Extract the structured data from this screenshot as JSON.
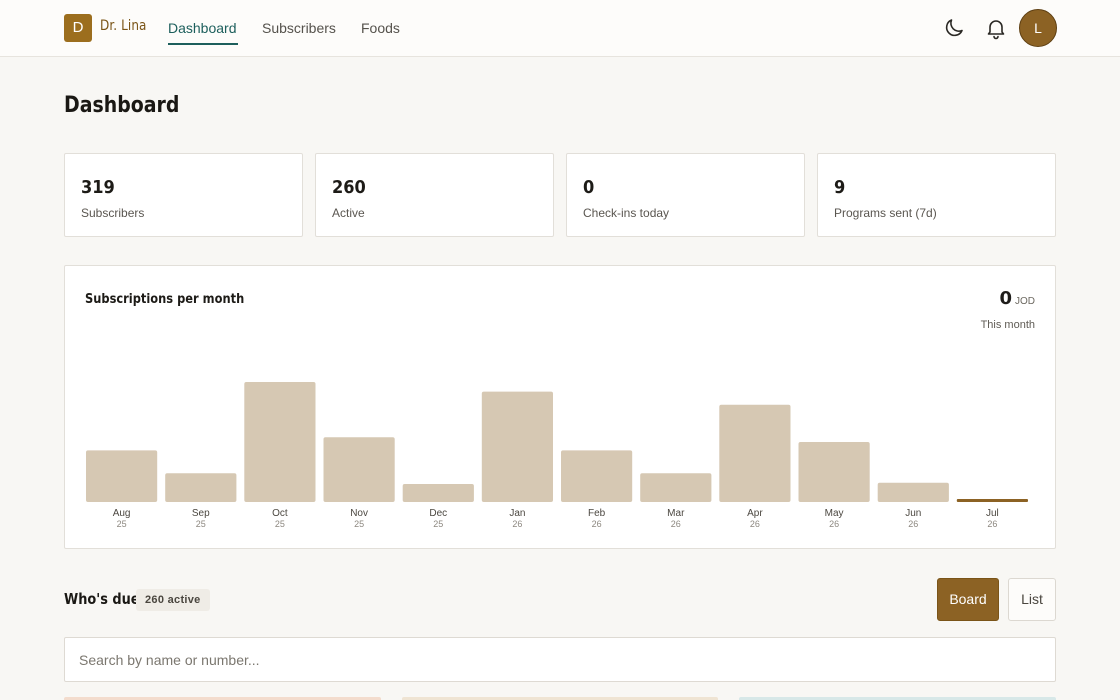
{
  "brand": {
    "initial": "D",
    "name": "Dr. Lina"
  },
  "nav": [
    {
      "label": "Dashboard",
      "active": true
    },
    {
      "label": "Subscribers",
      "active": false
    },
    {
      "label": "Foods",
      "active": false
    }
  ],
  "header_icons": [
    "moon-icon",
    "bell-icon"
  ],
  "user": {
    "initial": "L"
  },
  "page": {
    "title": "Dashboard"
  },
  "stats": [
    {
      "value": "319",
      "label": "Subscribers"
    },
    {
      "value": "260",
      "label": "Active"
    },
    {
      "value": "0",
      "label": "Check-ins today"
    },
    {
      "value": "9",
      "label": "Programs sent (7d)"
    }
  ],
  "chart_card": {
    "title": "Subscriptions per month",
    "total_value": "0",
    "total_unit": "JOD",
    "total_caption": "This month"
  },
  "chart_data": {
    "type": "bar",
    "title": "Subscriptions per month",
    "categories": [
      "Aug",
      "Sep",
      "Oct",
      "Nov",
      "Dec",
      "Jan",
      "Feb",
      "Mar",
      "Apr",
      "May",
      "Jun",
      "Jul"
    ],
    "years": [
      "25",
      "25",
      "25",
      "25",
      "25",
      "26",
      "26",
      "26",
      "26",
      "26",
      "26",
      "26"
    ],
    "values": [
      43,
      24,
      100,
      54,
      15,
      92,
      43,
      24,
      81,
      50,
      16,
      0
    ],
    "ylim": [
      0,
      100
    ],
    "grid": false,
    "bar_color": "#d6c8b3",
    "highlight_color": "#8c6224"
  },
  "due": {
    "title": "Who's due",
    "badge": "260 active",
    "view_board": "Board",
    "view_list": "List",
    "search_placeholder": "Search by name or number..."
  },
  "colors": {
    "accent": "#8c6224",
    "nav_active": "#1d5f5c",
    "background": "#f8f7f4"
  }
}
